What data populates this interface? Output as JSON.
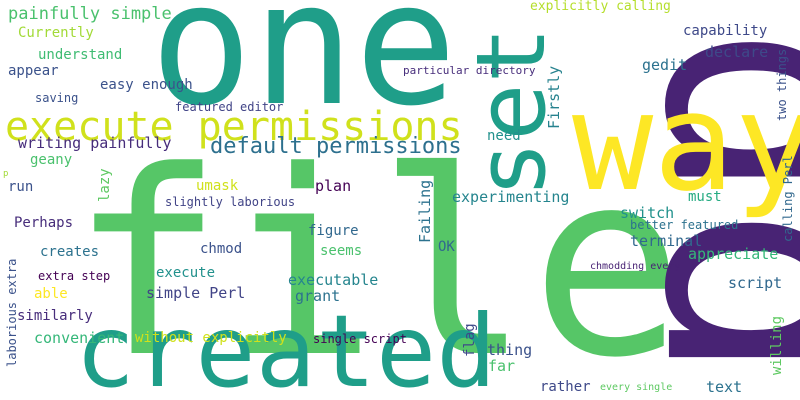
{
  "words": [
    {
      "text": "file",
      "color": "#56c667",
      "vertical": false
    },
    {
      "text": "one",
      "color": "#1f9e89",
      "vertical": false
    },
    {
      "text": "pp",
      "color": "#482374",
      "vertical": true
    },
    {
      "text": "way",
      "color": "#fde725",
      "vertical": false
    },
    {
      "text": "set",
      "color": "#1f9e89",
      "vertical": true
    },
    {
      "text": "created",
      "color": "#1f9e89",
      "vertical": false
    },
    {
      "text": "execute permissions",
      "color": "#d0e11c",
      "vertical": false
    },
    {
      "text": "default permissions",
      "color": "#2d708e",
      "vertical": false
    },
    {
      "text": "painfully simple",
      "color": "#4ac16d",
      "vertical": false
    },
    {
      "text": "Currently",
      "color": "#a2da37",
      "vertical": false
    },
    {
      "text": "understand",
      "color": "#3fbc73",
      "vertical": false
    },
    {
      "text": "appear",
      "color": "#3b528b",
      "vertical": false
    },
    {
      "text": "easy enough",
      "color": "#3b528b",
      "vertical": false
    },
    {
      "text": "saving",
      "color": "#3b528b",
      "vertical": false
    },
    {
      "text": "featured editor",
      "color": "#414487",
      "vertical": false
    },
    {
      "text": "writing painfully",
      "color": "#472d7b",
      "vertical": false
    },
    {
      "text": "geany",
      "color": "#4ac16d",
      "vertical": false
    },
    {
      "text": "run",
      "color": "#3b528b",
      "vertical": false
    },
    {
      "text": "lazy",
      "color": "#5ec962",
      "vertical": true
    },
    {
      "text": "umask",
      "color": "#d0e11c",
      "vertical": false
    },
    {
      "text": "plan",
      "color": "#440154",
      "vertical": false
    },
    {
      "text": "slightly laborious",
      "color": "#414487",
      "vertical": false
    },
    {
      "text": "Perhaps",
      "color": "#472d7b",
      "vertical": false
    },
    {
      "text": "creates",
      "color": "#2c728e",
      "vertical": false
    },
    {
      "text": "chmod",
      "color": "#3b528b",
      "vertical": false
    },
    {
      "text": "figure",
      "color": "#31688e",
      "vertical": false
    },
    {
      "text": "seems",
      "color": "#4ac16d",
      "vertical": false
    },
    {
      "text": "execute",
      "color": "#21918c",
      "vertical": false
    },
    {
      "text": "executable",
      "color": "#25858e",
      "vertical": false
    },
    {
      "text": "grant",
      "color": "#2c728e",
      "vertical": false
    },
    {
      "text": "simple Perl",
      "color": "#414487",
      "vertical": false
    },
    {
      "text": "extra step",
      "color": "#440154",
      "vertical": false
    },
    {
      "text": "able",
      "color": "#fde725",
      "vertical": false
    },
    {
      "text": "similarly",
      "color": "#472d7b",
      "vertical": false
    },
    {
      "text": "convenient",
      "color": "#35b779",
      "vertical": false
    },
    {
      "text": "without explicitly",
      "color": "#d0e11c",
      "vertical": false
    },
    {
      "text": "single script",
      "color": "#440154",
      "vertical": false
    },
    {
      "text": "laborious extra",
      "color": "#3b528b",
      "vertical": true
    },
    {
      "text": "p",
      "color": "#a2da37",
      "vertical": false
    },
    {
      "text": "explicitly calling",
      "color": "#b5de2b",
      "vertical": false
    },
    {
      "text": "capability",
      "color": "#3e4989",
      "vertical": false
    },
    {
      "text": "declare",
      "color": "#3e4989",
      "vertical": false
    },
    {
      "text": "gedit",
      "color": "#2c728e",
      "vertical": false
    },
    {
      "text": "particular directory",
      "color": "#472d7b",
      "vertical": false
    },
    {
      "text": "two things",
      "color": "#3b528b",
      "vertical": true
    },
    {
      "text": "need",
      "color": "#21918c",
      "vertical": false
    },
    {
      "text": "Firstly",
      "color": "#26828e",
      "vertical": true
    },
    {
      "text": "Failing",
      "color": "#2c728e",
      "vertical": true
    },
    {
      "text": "experimenting",
      "color": "#25858e",
      "vertical": false
    },
    {
      "text": "must",
      "color": "#25ab82",
      "vertical": false
    },
    {
      "text": "switch",
      "color": "#21918c",
      "vertical": false
    },
    {
      "text": "better featured",
      "color": "#2c728e",
      "vertical": false
    },
    {
      "text": "terminal",
      "color": "#31688e",
      "vertical": false
    },
    {
      "text": "calling Perl",
      "color": "#31688e",
      "vertical": true
    },
    {
      "text": "appreciate",
      "color": "#35b779",
      "vertical": false
    },
    {
      "text": "OK",
      "color": "#31688e",
      "vertical": false
    },
    {
      "text": "chmodding every",
      "color": "#482374",
      "vertical": false
    },
    {
      "text": "script",
      "color": "#31688e",
      "vertical": false
    },
    {
      "text": "willing",
      "color": "#5ec962",
      "vertical": true
    },
    {
      "text": "flag",
      "color": "#3e4989",
      "vertical": true
    },
    {
      "text": "thing",
      "color": "#3b528b",
      "vertical": false
    },
    {
      "text": "far",
      "color": "#4ac16d",
      "vertical": false
    },
    {
      "text": "rather",
      "color": "#3e4989",
      "vertical": false
    },
    {
      "text": "every single",
      "color": "#5ec962",
      "vertical": false
    },
    {
      "text": "text",
      "color": "#2c728e",
      "vertical": false
    }
  ]
}
